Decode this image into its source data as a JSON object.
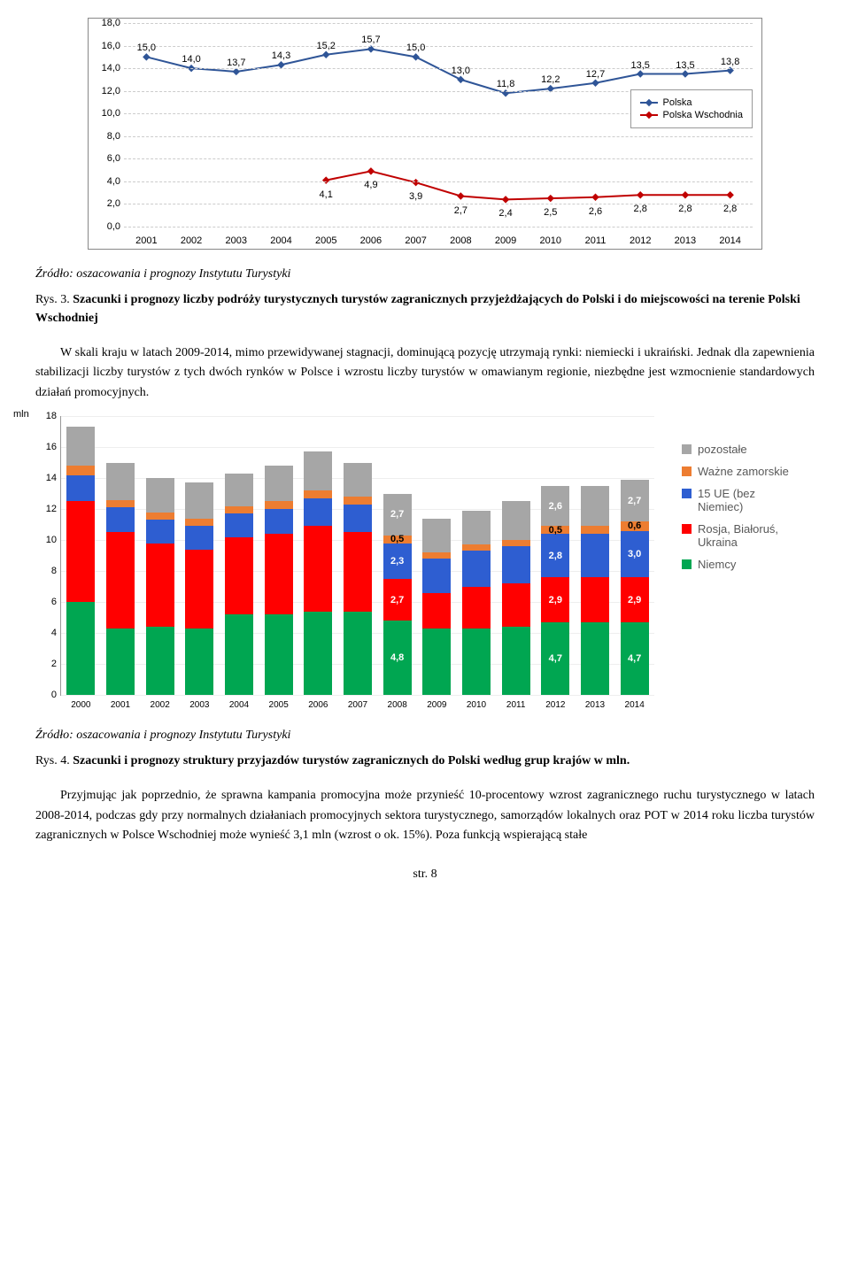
{
  "chart1": {
    "type": "line",
    "ylim": [
      0,
      18
    ],
    "ytick_step": 2,
    "ytick_labels": [
      "0,0",
      "2,0",
      "4,0",
      "6,0",
      "8,0",
      "10,0",
      "12,0",
      "14,0",
      "16,0",
      "18,0"
    ],
    "x_labels": [
      "2001",
      "2002",
      "2003",
      "2004",
      "2005",
      "2006",
      "2007",
      "2008",
      "2009",
      "2010",
      "2011",
      "2012",
      "2013",
      "2014"
    ],
    "series": [
      {
        "name": "Polska",
        "color": "#2f5597",
        "values": [
          15.0,
          14.0,
          13.7,
          14.3,
          15.2,
          15.7,
          15.0,
          13.0,
          11.8,
          12.2,
          12.7,
          13.5,
          13.5,
          13.8
        ],
        "labels": [
          "15,0",
          "14,0",
          "13,7",
          "14,3",
          "15,2",
          "15,7",
          "15,0",
          "13,0",
          "11,8",
          "12,2",
          "12,7",
          "13,5",
          "13,5",
          "13,8"
        ]
      },
      {
        "name": "Polska Wschodnia",
        "color": "#c00000",
        "values": [
          null,
          null,
          null,
          null,
          4.1,
          4.9,
          3.9,
          2.7,
          2.4,
          2.5,
          2.6,
          2.8,
          2.8,
          2.8
        ],
        "labels": [
          "",
          "",
          "",
          "",
          "4,1",
          "4,9",
          "3,9",
          "2,7",
          "2,4",
          "2,5",
          "2,6",
          "2,8",
          "2,8",
          "2,8"
        ]
      }
    ],
    "grid_color": "#cccccc"
  },
  "source1": "Źródło: oszacowania i prognozy Instytutu Turystyki",
  "caption1_prefix": "Rys. 3. ",
  "caption1_bold": "Szacunki i prognozy liczby podróży turystycznych turystów zagranicznych przyjeżdżających do Polski i do miejscowości na terenie Polski Wschodniej",
  "para1": "W skali kraju w latach 2009-2014, mimo przewidywanej stagnacji, dominującą pozycję utrzymają rynki: niemiecki i ukraiński. Jednak dla zapewnienia stabilizacji liczby turystów z tych dwóch rynków w Polsce i wzrostu liczby turystów w omawianym regionie, niezbędne jest wzmocnienie standardowych działań promocyjnych.",
  "chart2": {
    "type": "stacked-bar",
    "unit_label": "mln",
    "ylim": [
      0,
      18
    ],
    "ytick_step": 2,
    "x_labels": [
      "2000",
      "2001",
      "2002",
      "2003",
      "2004",
      "2005",
      "2006",
      "2007",
      "2008",
      "2009",
      "2010",
      "2011",
      "2012",
      "2013",
      "2014"
    ],
    "colors": {
      "pozostale": "#a6a6a6",
      "zamorskie": "#ed7d31",
      "ue15": "#2e5ed1",
      "rosja": "#ff0000",
      "niemcy": "#00a651"
    },
    "legend": [
      {
        "key": "pozostale",
        "label": "pozostałe"
      },
      {
        "key": "zamorskie",
        "label": "Ważne zamorskie"
      },
      {
        "key": "ue15",
        "label": "15 UE (bez Niemiec)"
      },
      {
        "key": "rosja",
        "label": "Rosja, Białoruś, Ukraina"
      },
      {
        "key": "niemcy",
        "label": "Niemcy"
      }
    ],
    "data": [
      {
        "niemcy": 6.0,
        "rosja": 6.5,
        "ue15": 1.7,
        "zamorskie": 0.6,
        "pozostale": 2.5
      },
      {
        "niemcy": 4.3,
        "rosja": 6.2,
        "ue15": 1.6,
        "zamorskie": 0.5,
        "pozostale": 2.4
      },
      {
        "niemcy": 4.4,
        "rosja": 5.4,
        "ue15": 1.5,
        "zamorskie": 0.5,
        "pozostale": 2.2
      },
      {
        "niemcy": 4.3,
        "rosja": 5.1,
        "ue15": 1.5,
        "zamorskie": 0.5,
        "pozostale": 2.3
      },
      {
        "niemcy": 5.2,
        "rosja": 5.0,
        "ue15": 1.5,
        "zamorskie": 0.5,
        "pozostale": 2.1
      },
      {
        "niemcy": 5.2,
        "rosja": 5.2,
        "ue15": 1.6,
        "zamorskie": 0.5,
        "pozostale": 2.3
      },
      {
        "niemcy": 5.4,
        "rosja": 5.5,
        "ue15": 1.8,
        "zamorskie": 0.5,
        "pozostale": 2.5
      },
      {
        "niemcy": 5.4,
        "rosja": 5.1,
        "ue15": 1.8,
        "zamorskie": 0.5,
        "pozostale": 2.2
      },
      {
        "niemcy": 4.8,
        "rosja": 2.7,
        "ue15": 2.3,
        "zamorskie": 0.5,
        "pozostale": 2.7
      },
      {
        "niemcy": 4.3,
        "rosja": 2.3,
        "ue15": 2.2,
        "zamorskie": 0.4,
        "pozostale": 2.2
      },
      {
        "niemcy": 4.3,
        "rosja": 2.7,
        "ue15": 2.3,
        "zamorskie": 0.4,
        "pozostale": 2.2
      },
      {
        "niemcy": 4.4,
        "rosja": 2.8,
        "ue15": 2.4,
        "zamorskie": 0.4,
        "pozostale": 2.5
      },
      {
        "niemcy": 4.7,
        "rosja": 2.9,
        "ue15": 2.8,
        "zamorskie": 0.5,
        "pozostale": 2.6
      },
      {
        "niemcy": 4.7,
        "rosja": 2.9,
        "ue15": 2.8,
        "zamorskie": 0.5,
        "pozostale": 2.6
      },
      {
        "niemcy": 4.7,
        "rosja": 2.9,
        "ue15": 3.0,
        "zamorskie": 0.6,
        "pozostale": 2.7
      }
    ],
    "overlay_labels": [
      {
        "i": 8,
        "seg": "niemcy",
        "t": "4,8"
      },
      {
        "i": 8,
        "seg": "rosja",
        "t": "2,7"
      },
      {
        "i": 8,
        "seg": "ue15",
        "t": "2,3"
      },
      {
        "i": 8,
        "seg": "zamorskie",
        "t": "0,5"
      },
      {
        "i": 8,
        "seg": "pozostale",
        "t": "2,7"
      },
      {
        "i": 12,
        "seg": "niemcy",
        "t": "4,7"
      },
      {
        "i": 12,
        "seg": "rosja",
        "t": "2,9"
      },
      {
        "i": 12,
        "seg": "ue15",
        "t": "2,8"
      },
      {
        "i": 12,
        "seg": "zamorskie",
        "t": "0,5"
      },
      {
        "i": 12,
        "seg": "pozostale",
        "t": "2,6"
      },
      {
        "i": 14,
        "seg": "niemcy",
        "t": "4,7"
      },
      {
        "i": 14,
        "seg": "rosja",
        "t": "2,9"
      },
      {
        "i": 14,
        "seg": "ue15",
        "t": "3,0"
      },
      {
        "i": 14,
        "seg": "zamorskie",
        "t": "0,6"
      },
      {
        "i": 14,
        "seg": "pozostale",
        "t": "2,7"
      }
    ]
  },
  "source2": "Źródło: oszacowania i prognozy Instytutu Turystyki",
  "caption2_prefix": "Rys. 4. ",
  "caption2_bold": "Szacunki i prognozy struktury przyjazdów turystów zagranicznych do Polski według grup krajów w mln.",
  "para2": "Przyjmując jak poprzednio, że sprawna kampania promocyjna może przynieść 10-procentowy wzrost zagranicznego ruchu turystycznego w latach 2008-2014, podczas gdy przy normalnych działaniach promocyjnych sektora turystycznego, samorządów lokalnych oraz POT w 2014 roku liczba turystów zagranicznych w Polsce Wschodniej może wynieść 3,1 mln (wzrost o ok. 15%). Poza funkcją wspierającą stałe",
  "page_num": "str. 8"
}
